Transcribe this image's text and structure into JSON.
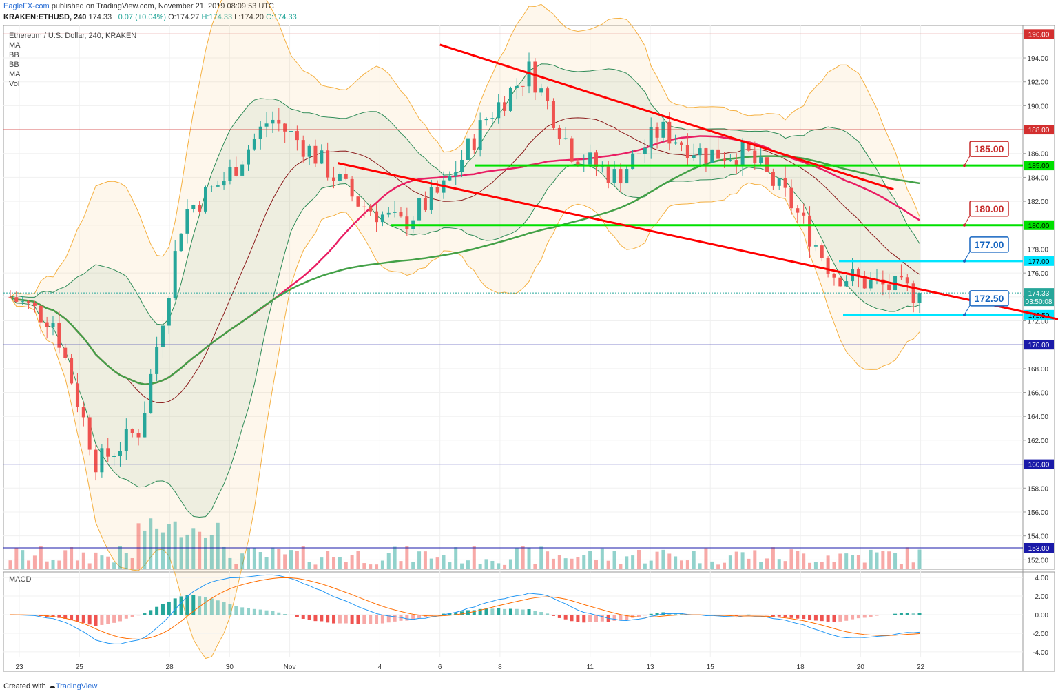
{
  "header": {
    "publisher_link": "EagleFX-com",
    "published_text": " published on TradingView.com, November 21, 2019 08:09:53 UTC",
    "symbol": "KRAKEN:ETHUSD, 240",
    "last": "174.33",
    "change": "+0.07 (+0.04%)",
    "ohlc_o": "O:174.27",
    "ohlc_h": "H:174.33",
    "ohlc_l": "L:174.20",
    "ohlc_c": "C:174.33"
  },
  "legend": {
    "title": "Ethereum / U.S. Dollar, 240, KRAKEN",
    "items": [
      "MA",
      "BB",
      "BB",
      "MA",
      "Vol"
    ]
  },
  "macd_label": "MACD",
  "footer": {
    "created_with": "Created with",
    "brand": "TradingView"
  },
  "colors": {
    "up": "#26a69a",
    "down": "#ef5350",
    "channel": "#ff0000",
    "green_level": "#00e000",
    "cyan_level": "#00e5ff",
    "red_level": "#d32f2f",
    "blue_level": "#1a1aa8",
    "ma200": "#43a047",
    "ma50": "#e91e63",
    "bb_outer": "#f5b041",
    "bb_inner": "#2e8b57"
  },
  "chart_data": {
    "type": "candlestick",
    "y_axis_ticks": [
      "196.00",
      "194.00",
      "192.00",
      "190.00",
      "188.00",
      "186.00",
      "184.00",
      "182.00",
      "180.00",
      "178.00",
      "176.00",
      "174.00",
      "172.00",
      "170.00",
      "168.00",
      "166.00",
      "164.00",
      "162.00",
      "160.00",
      "158.00",
      "156.00",
      "154.00",
      "152.00"
    ],
    "ylim": [
      151.5,
      197
    ],
    "x_axis_ticks": [
      "23",
      "25",
      "28",
      "30",
      "Nov",
      "4",
      "6",
      "8",
      "11",
      "13",
      "15",
      "18",
      "20",
      "22"
    ],
    "horizontal_levels": [
      {
        "value": 196.0,
        "label": "196.00",
        "color": "#d32f2f"
      },
      {
        "value": 188.0,
        "label": "188.00",
        "color": "#d32f2f"
      },
      {
        "value": 185.0,
        "label": "185.00",
        "color": "#00e000"
      },
      {
        "value": 180.0,
        "label": "180.00",
        "color": "#00e000"
      },
      {
        "value": 177.0,
        "label": "177.00",
        "color": "#00e5ff"
      },
      {
        "value": 172.5,
        "label": "172.50",
        "color": "#00e5ff"
      },
      {
        "value": 170.0,
        "label": "170.00",
        "color": "#1a1aa8"
      },
      {
        "value": 160.0,
        "label": "160.00",
        "color": "#1a1aa8"
      },
      {
        "value": 153.0,
        "label": "153.00",
        "color": "#1a1aa8"
      }
    ],
    "callouts": [
      {
        "text": "185.00",
        "value": 185.0,
        "color": "#c62828"
      },
      {
        "text": "180.00",
        "value": 180.0,
        "color": "#c62828"
      },
      {
        "text": "177.00",
        "value": 177.0,
        "color": "#1565c0"
      },
      {
        "text": "172.50",
        "value": 172.5,
        "color": "#1565c0"
      }
    ],
    "last_price": {
      "value": 174.33,
      "label": "174.33",
      "countdown": "03:50:08"
    },
    "channel_lines": [
      {
        "x1": 6.0,
        "y1": 195.1,
        "x2": 17.9,
        "y2": 183.0
      },
      {
        "x1": 4.3,
        "y1": 185.2,
        "x2": 21.4,
        "y2": 171.3
      }
    ],
    "macd_ticks": [
      "4.00",
      "2.00",
      "0.00",
      "-2.00",
      "-4.00"
    ],
    "macd_ylim": [
      -4.6,
      4.6
    ],
    "close_path_x": [
      0,
      1,
      2,
      3,
      4,
      5,
      6,
      7,
      8,
      9,
      10,
      11,
      12,
      13,
      14,
      15,
      16,
      17,
      18,
      19,
      20,
      21
    ],
    "close_path_y": [
      174,
      172,
      160,
      163,
      181,
      184,
      189,
      186,
      182,
      180,
      183,
      189,
      193,
      186,
      184,
      188,
      186,
      186,
      182,
      176,
      175,
      174.3
    ]
  }
}
